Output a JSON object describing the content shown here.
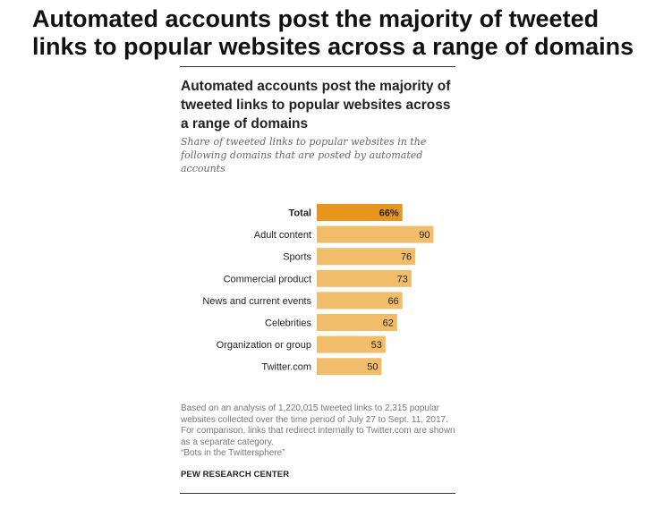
{
  "headline": "Automated accounts post the majority of tweeted links to popular websites across a range of domains",
  "colors": {
    "bar": "#f1bd6b",
    "bar_highlight": "#e8951e"
  },
  "chart_data": {
    "type": "bar",
    "orientation": "horizontal",
    "title": "Automated accounts post the majority of tweeted links to popular websites across a range of domains",
    "subtitle": "Share of tweeted links to popular websites in the following domains that are posted by automated accounts",
    "categories": [
      "Total",
      "Adult content",
      "Sports",
      "Commercial product",
      "News and current events",
      "Celebrities",
      "Organization or group",
      "Twitter.com"
    ],
    "values": [
      66,
      90,
      76,
      73,
      66,
      62,
      53,
      50
    ],
    "value_labels": [
      "66%",
      "90",
      "76",
      "73",
      "66",
      "62",
      "53",
      "50"
    ],
    "highlight": "Total",
    "xlim": [
      0,
      100
    ],
    "grid": false,
    "legend": "none"
  },
  "note": {
    "line1": "Based on an analysis of 1,220,015 tweeted links to 2,315 popular websites collected over the time period of July 27 to Sept. 11, 2017.  For comparison, links that redirect internally to Twitter.com are shown as a separate category.",
    "line2": "“Bots in the Twittersphere”"
  },
  "source": "PEW RESEARCH CENTER"
}
